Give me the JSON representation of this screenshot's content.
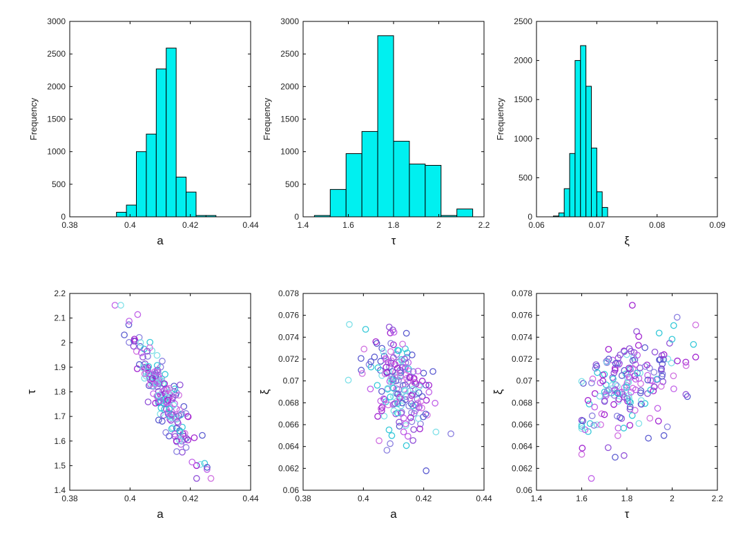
{
  "colors": {
    "bar_fill": "#00f0f0",
    "bar_stroke": "#000000",
    "axis": "#000000"
  },
  "chart_data": [
    {
      "id": "hist-a",
      "type": "bar",
      "xlabel": "a",
      "ylabel": "Frequency",
      "xlim": [
        0.38,
        0.44
      ],
      "ylim": [
        0,
        3000
      ],
      "xticks": [
        0.38,
        0.4,
        0.42,
        0.44
      ],
      "xtick_labels": [
        "0.38",
        "0.4",
        "0.42",
        "0.44"
      ],
      "yticks": [
        0,
        500,
        1000,
        1500,
        2000,
        2500,
        3000
      ],
      "ytick_labels": [
        "0",
        "500",
        "1000",
        "1500",
        "2000",
        "2500",
        "3000"
      ],
      "bin_edges": [
        0.3955,
        0.3988,
        0.4021,
        0.4054,
        0.4087,
        0.412,
        0.4153,
        0.4186,
        0.4219,
        0.4252,
        0.4285,
        0.4318
      ],
      "values": [
        70,
        180,
        1000,
        1270,
        2270,
        2590,
        610,
        380,
        20,
        20,
        0
      ]
    },
    {
      "id": "hist-tau",
      "type": "bar",
      "xlabel": "τ",
      "ylabel": "Frequency",
      "xlim": [
        1.4,
        2.2
      ],
      "ylim": [
        0,
        3000
      ],
      "xticks": [
        1.4,
        1.6,
        1.8,
        2,
        2.2
      ],
      "xtick_labels": [
        "1.4",
        "1.6",
        "1.8",
        "2",
        "2.2"
      ],
      "yticks": [
        0,
        500,
        1000,
        1500,
        2000,
        2500,
        3000
      ],
      "ytick_labels": [
        "0",
        "500",
        "1000",
        "1500",
        "2000",
        "2500",
        "3000"
      ],
      "bin_edges": [
        1.45,
        1.52,
        1.59,
        1.66,
        1.73,
        1.8,
        1.87,
        1.94,
        2.01,
        2.08,
        2.15,
        2.22
      ],
      "values": [
        20,
        420,
        970,
        1310,
        2780,
        1160,
        810,
        790,
        20,
        120,
        0
      ]
    },
    {
      "id": "hist-xi",
      "type": "bar",
      "xlabel": "ξ",
      "ylabel": "Frequency",
      "xlim": [
        0.06,
        0.09
      ],
      "ylim": [
        0,
        2500
      ],
      "xticks": [
        0.06,
        0.07,
        0.08,
        0.09
      ],
      "xtick_labels": [
        "0.06",
        "0.07",
        "0.08",
        "0.09"
      ],
      "yticks": [
        0,
        500,
        1000,
        1500,
        2000,
        2500
      ],
      "ytick_labels": [
        "0",
        "500",
        "1000",
        "1500",
        "2000",
        "2500"
      ],
      "bin_edges": [
        0.0628,
        0.0637,
        0.0646,
        0.0655,
        0.0664,
        0.0673,
        0.0682,
        0.0691,
        0.07,
        0.0709,
        0.0718,
        0.0727
      ],
      "values": [
        10,
        50,
        360,
        810,
        2000,
        2190,
        1670,
        880,
        320,
        120,
        0
      ]
    },
    {
      "id": "scatter-a-tau",
      "type": "scatter",
      "xlabel": "a",
      "ylabel": "τ",
      "xlim": [
        0.38,
        0.44
      ],
      "ylim": [
        1.4,
        2.2
      ],
      "xticks": [
        0.38,
        0.4,
        0.42,
        0.44
      ],
      "xtick_labels": [
        "0.38",
        "0.4",
        "0.42",
        "0.44"
      ],
      "yticks": [
        1.4,
        1.5,
        1.6,
        1.7,
        1.8,
        1.9,
        2,
        2.1,
        2.2
      ],
      "ytick_labels": [
        "1.4",
        "1.5",
        "1.6",
        "1.7",
        "1.8",
        "1.9",
        "2",
        "2.1",
        "2.2"
      ],
      "n_points": 200,
      "center": [
        0.411,
        1.79
      ],
      "spread": [
        0.0055,
        0.13
      ],
      "correlation": -0.9
    },
    {
      "id": "scatter-a-xi",
      "type": "scatter",
      "xlabel": "a",
      "ylabel": "ξ",
      "xlim": [
        0.38,
        0.44
      ],
      "ylim": [
        0.06,
        0.078
      ],
      "xticks": [
        0.38,
        0.4,
        0.42,
        0.44
      ],
      "xtick_labels": [
        "0.38",
        "0.4",
        "0.42",
        "0.44"
      ],
      "yticks": [
        0.06,
        0.062,
        0.064,
        0.066,
        0.068,
        0.07,
        0.072,
        0.074,
        0.076,
        0.078
      ],
      "ytick_labels": [
        "0.06",
        "0.062",
        "0.064",
        "0.066",
        "0.068",
        "0.07",
        "0.072",
        "0.074",
        "0.076",
        "0.078"
      ],
      "n_points": 200,
      "center": [
        0.411,
        0.0697
      ],
      "spread": [
        0.0055,
        0.0025
      ],
      "correlation": -0.45
    },
    {
      "id": "scatter-tau-xi",
      "type": "scatter",
      "xlabel": "τ",
      "ylabel": "ξ",
      "xlim": [
        1.4,
        2.2
      ],
      "ylim": [
        0.06,
        0.078
      ],
      "xticks": [
        1.4,
        1.6,
        1.8,
        2,
        2.2
      ],
      "xtick_labels": [
        "1.4",
        "1.6",
        "1.8",
        "2",
        "2.2"
      ],
      "yticks": [
        0.06,
        0.062,
        0.064,
        0.066,
        0.068,
        0.07,
        0.072,
        0.074,
        0.076,
        0.078
      ],
      "ytick_labels": [
        "0.06",
        "0.062",
        "0.064",
        "0.066",
        "0.068",
        "0.07",
        "0.072",
        "0.074",
        "0.076",
        "0.078"
      ],
      "n_points": 200,
      "center": [
        1.79,
        0.0697
      ],
      "spread": [
        0.13,
        0.0025
      ],
      "correlation": 0.45
    }
  ],
  "scatter_colors": [
    "#7fe0e8",
    "#33c8d8",
    "#8a7fe0",
    "#5a5ad0",
    "#c060e8",
    "#a020d0",
    "#d070e0",
    "#9050d8"
  ]
}
